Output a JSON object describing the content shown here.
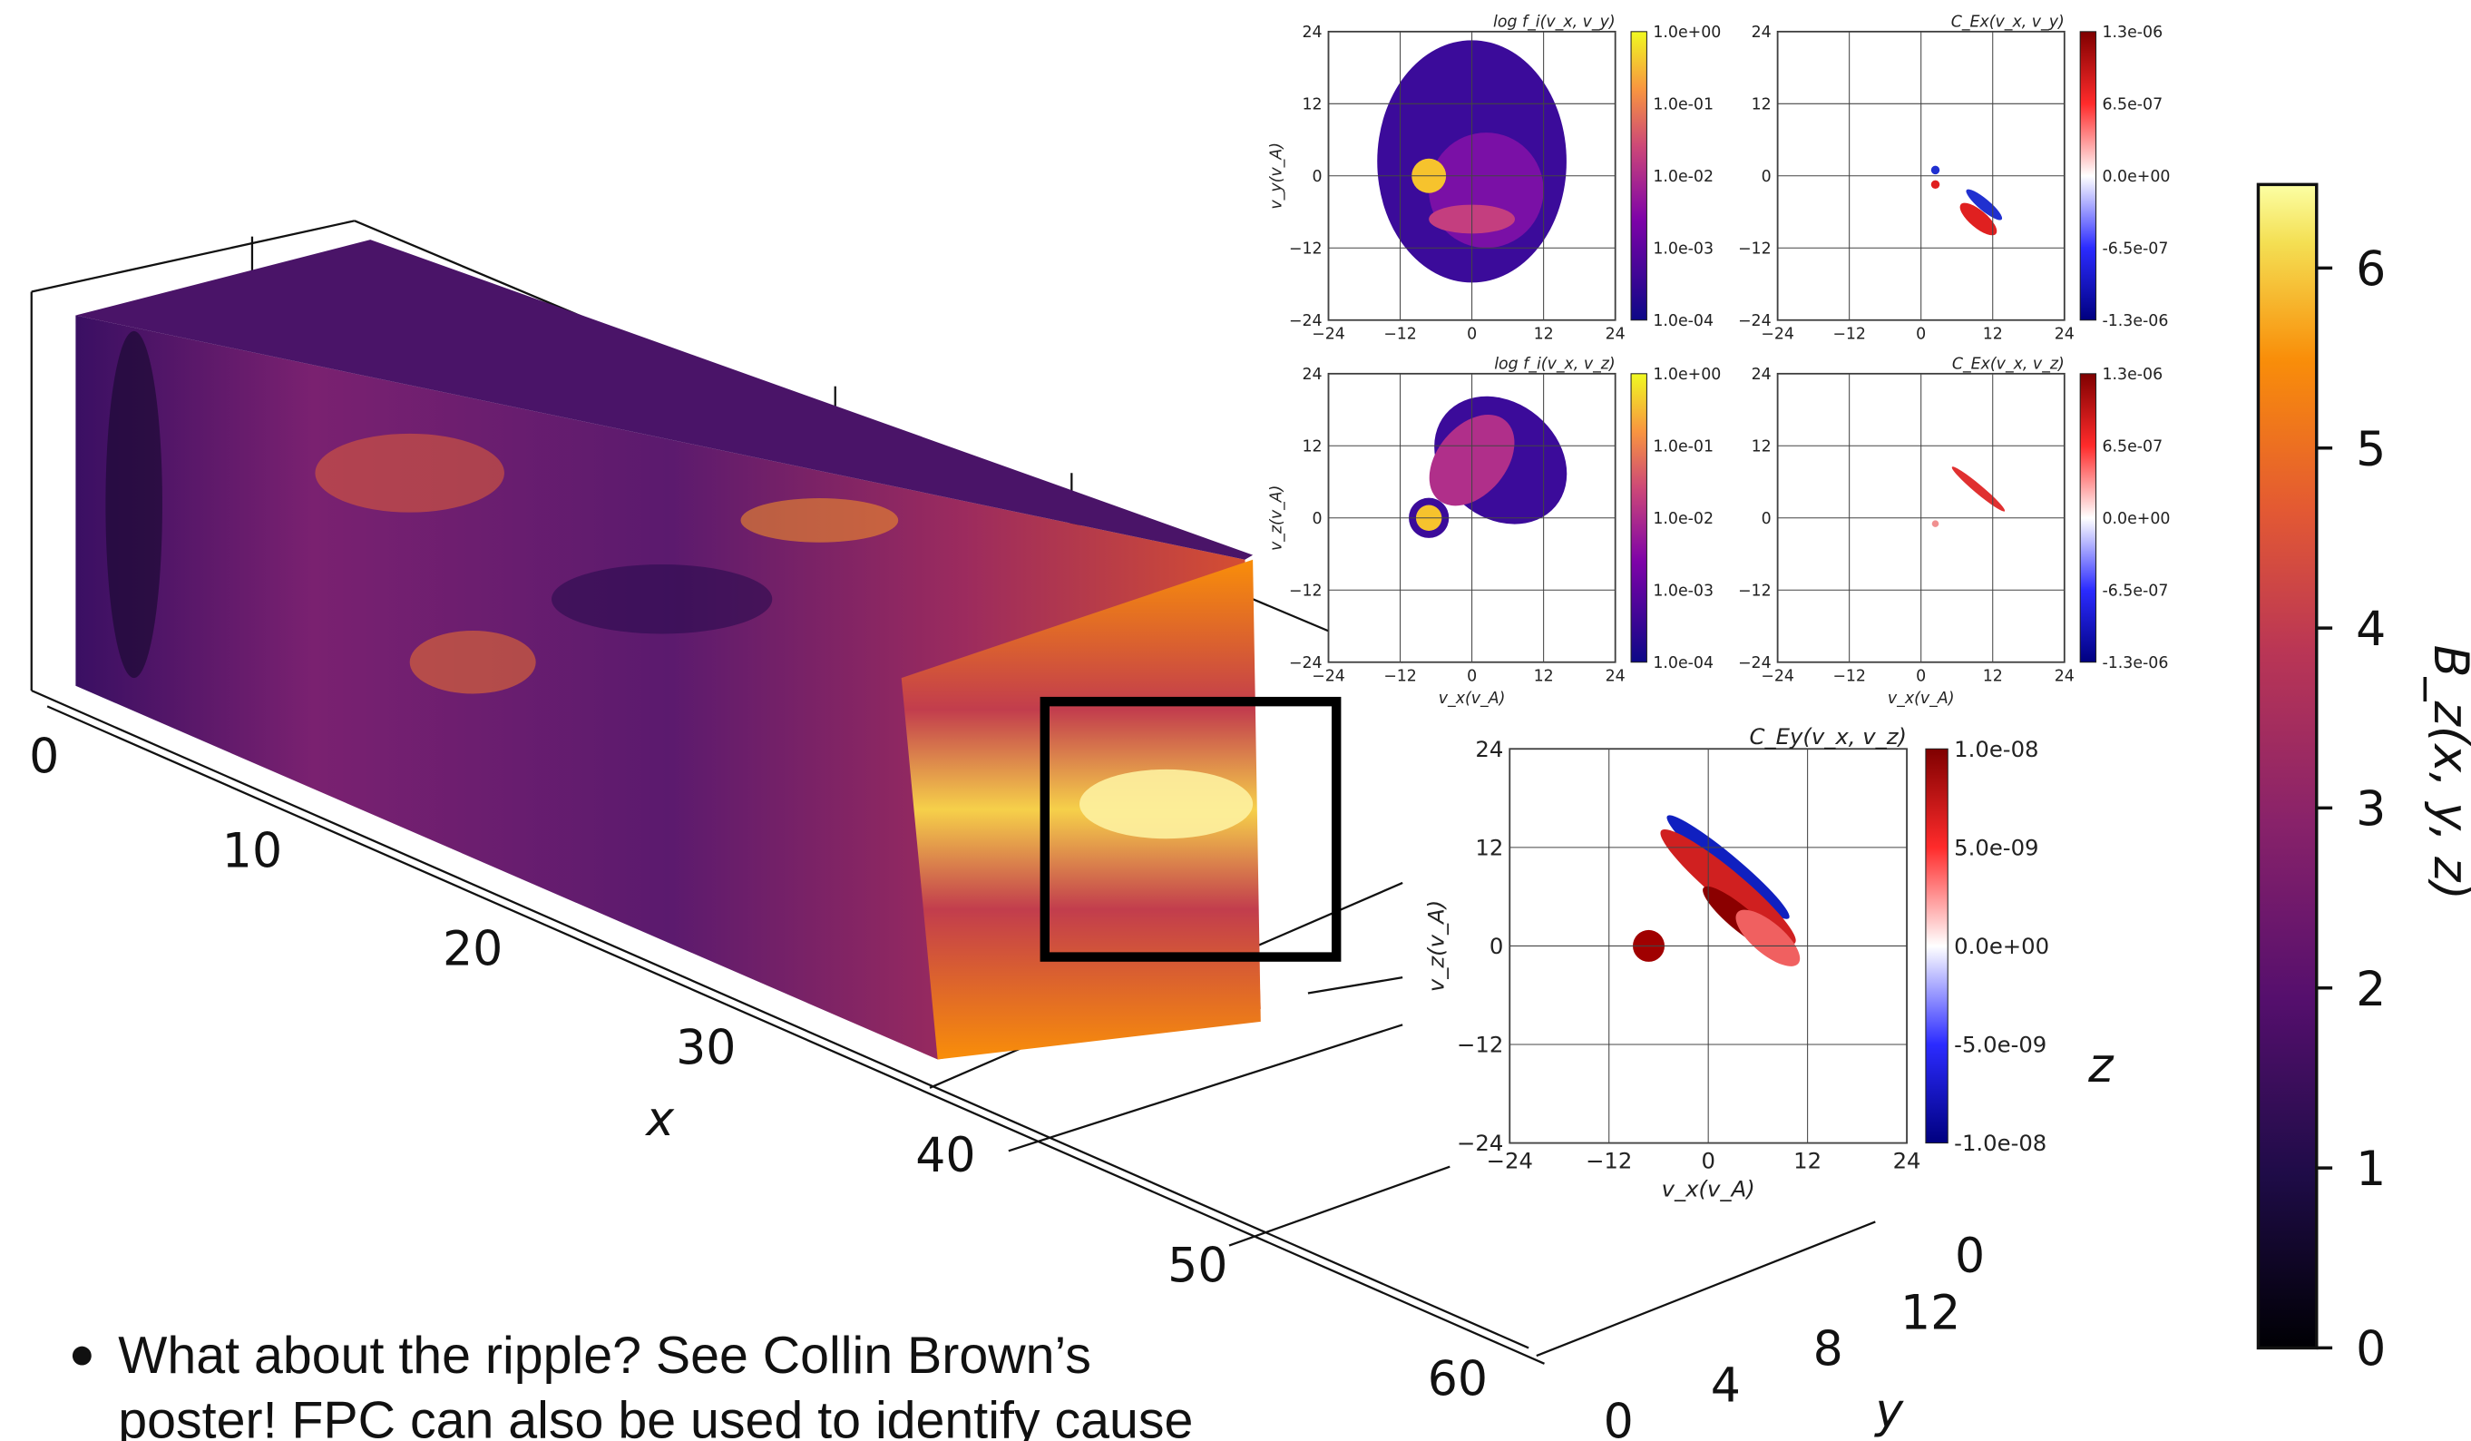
{
  "figure": {
    "x_axis": {
      "label": "x",
      "ticks": [
        "0",
        "10",
        "20",
        "30",
        "40",
        "50",
        "60"
      ]
    },
    "y_axis": {
      "label": "y",
      "ticks": [
        "0",
        "4",
        "8",
        "12"
      ]
    },
    "z_axis": {
      "label": "z",
      "ticks": [
        "0"
      ]
    },
    "colorbar": {
      "label": "B_z(x, y, z)",
      "ticks": [
        "0",
        "1",
        "2",
        "3",
        "4",
        "5",
        "6"
      ]
    },
    "panels": [
      {
        "title": "log f_i(v_x, v_y)",
        "ylabel": "v_y(v_A)",
        "xticks": [
          "−24",
          "−12",
          "0",
          "12",
          "24"
        ],
        "yticks": [
          "24",
          "12",
          "0",
          "−12",
          "−24"
        ],
        "colorbar": [
          "1.0e+00",
          "1.0e-01",
          "1.0e-02",
          "1.0e-03",
          "1.0e-04"
        ]
      },
      {
        "title": "C_Ex(v_x, v_y)",
        "xticks": [
          "−24",
          "−12",
          "0",
          "12",
          "24"
        ],
        "yticks": [
          "24",
          "12",
          "0",
          "−12",
          "−24"
        ],
        "colorbar": [
          "1.3e-06",
          "6.5e-07",
          "0.0e+00",
          "-6.5e-07",
          "-1.3e-06"
        ]
      },
      {
        "title": "log f_i(v_x, v_z)",
        "ylabel": "v_z(v_A)",
        "xlabel": "v_x(v_A)",
        "xticks": [
          "−24",
          "−12",
          "0",
          "12",
          "24"
        ],
        "yticks": [
          "24",
          "12",
          "0",
          "−12",
          "−24"
        ],
        "colorbar": [
          "1.0e+00",
          "1.0e-01",
          "1.0e-02",
          "1.0e-03",
          "1.0e-04"
        ]
      },
      {
        "title": "C_Ex(v_x, v_z)",
        "xlabel": "v_x(v_A)",
        "xticks": [
          "−24",
          "−12",
          "0",
          "12",
          "24"
        ],
        "yticks": [
          "24",
          "12",
          "0",
          "−12",
          "−24"
        ],
        "colorbar": [
          "1.3e-06",
          "6.5e-07",
          "0.0e+00",
          "-6.5e-07",
          "-1.3e-06"
        ]
      },
      {
        "title": "C_Ey(v_x, v_z)",
        "ylabel": "v_z(v_A)",
        "xlabel": "v_x(v_A)",
        "xticks": [
          "−24",
          "−12",
          "0",
          "12",
          "24"
        ],
        "yticks": [
          "24",
          "12",
          "0",
          "−12",
          "−24"
        ],
        "colorbar": [
          "1.0e-08",
          "5.0e-09",
          "0.0e+00",
          "-5.0e-09",
          "-1.0e-08"
        ]
      }
    ]
  },
  "bullet": {
    "lines": [
      "What about the ripple? See Collin Brown’s",
      "poster! FPC can also be used to identify cause"
    ]
  }
}
